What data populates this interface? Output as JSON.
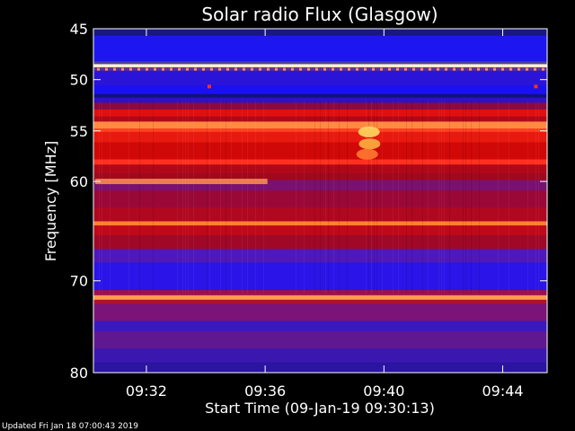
{
  "chart_data": {
    "type": "heatmap",
    "title": "Solar radio Flux (Glasgow)",
    "xlabel": "Start Time (09-Jan-19 09:30:13)",
    "ylabel": "Frequency [MHz]",
    "y_range": [
      45,
      80
    ],
    "y_inverted": true,
    "x_range": [
      "09:30:13",
      "09:45:30"
    ],
    "x_ticks": [
      "09:32",
      "09:36",
      "09:40",
      "09:44"
    ],
    "x_tick_minutes": [
      1.783,
      5.783,
      9.783,
      13.783
    ],
    "x_span_minutes": 15.28,
    "y_ticks": [
      45,
      50,
      55,
      60,
      70,
      80
    ],
    "y_tick_fracs": [
      0.0,
      0.148,
      0.297,
      0.444,
      0.733,
      1.0
    ],
    "colors": {
      "low": "#1a10e0",
      "mid": "#cc0000",
      "high": "#ff9a40",
      "peak": "#fff2c0"
    },
    "bands": [
      {
        "f0": 0.0,
        "f1": 0.02,
        "c": "#1a1880"
      },
      {
        "f0": 0.02,
        "f1": 0.095,
        "c": "#1e16f0"
      },
      {
        "f0": 0.095,
        "f1": 0.103,
        "c": "#5040a0"
      },
      {
        "f0": 0.103,
        "f1": 0.112,
        "c": "#fff4d0"
      },
      {
        "f0": 0.112,
        "f1": 0.122,
        "c": "#6030a0"
      },
      {
        "f0": 0.122,
        "f1": 0.165,
        "c": "#2a14d8"
      },
      {
        "f0": 0.165,
        "f1": 0.19,
        "c": "#1a10f0"
      },
      {
        "f0": 0.19,
        "f1": 0.2,
        "c": "#101080"
      },
      {
        "f0": 0.2,
        "f1": 0.215,
        "c": "#3010c0"
      },
      {
        "f0": 0.215,
        "f1": 0.235,
        "c": "#8a0a40"
      },
      {
        "f0": 0.235,
        "f1": 0.255,
        "c": "#e01010"
      },
      {
        "f0": 0.255,
        "f1": 0.27,
        "c": "#b00818"
      },
      {
        "f0": 0.27,
        "f1": 0.29,
        "c": "#ff8a40"
      },
      {
        "f0": 0.29,
        "f1": 0.3,
        "c": "#ff4020"
      },
      {
        "f0": 0.3,
        "f1": 0.33,
        "c": "#e81a10"
      },
      {
        "f0": 0.33,
        "f1": 0.38,
        "c": "#d00808"
      },
      {
        "f0": 0.38,
        "f1": 0.395,
        "c": "#ff3020"
      },
      {
        "f0": 0.395,
        "f1": 0.42,
        "c": "#b00818"
      },
      {
        "f0": 0.42,
        "f1": 0.44,
        "c": "#a00820"
      },
      {
        "f0": 0.44,
        "f1": 0.47,
        "c": "#7a1070"
      },
      {
        "f0": 0.47,
        "f1": 0.52,
        "c": "#9a0838"
      },
      {
        "f0": 0.52,
        "f1": 0.56,
        "c": "#b00820"
      },
      {
        "f0": 0.56,
        "f1": 0.572,
        "c": "#ff8030"
      },
      {
        "f0": 0.572,
        "f1": 0.6,
        "c": "#c00818"
      },
      {
        "f0": 0.6,
        "f1": 0.64,
        "c": "#a00828"
      },
      {
        "f0": 0.64,
        "f1": 0.68,
        "c": "#5018b8"
      },
      {
        "f0": 0.68,
        "f1": 0.76,
        "c": "#2a14e8"
      },
      {
        "f0": 0.76,
        "f1": 0.775,
        "c": "#9a1050"
      },
      {
        "f0": 0.775,
        "f1": 0.788,
        "c": "#ff9a50"
      },
      {
        "f0": 0.788,
        "f1": 0.8,
        "c": "#b01030"
      },
      {
        "f0": 0.8,
        "f1": 0.85,
        "c": "#7a1478"
      },
      {
        "f0": 0.85,
        "f1": 0.88,
        "c": "#3a18c0"
      },
      {
        "f0": 0.88,
        "f1": 0.93,
        "c": "#601890"
      },
      {
        "f0": 0.93,
        "f1": 0.97,
        "c": "#3a18b0"
      },
      {
        "f0": 0.97,
        "f1": 1.0,
        "c": "#2a14a0"
      }
    ],
    "features": [
      {
        "name": "burst",
        "t": 9.28,
        "f": 0.3,
        "c": "#ffd860"
      },
      {
        "name": "burst",
        "t": 9.3,
        "f": 0.335,
        "c": "#ffb040"
      },
      {
        "name": "burst",
        "t": 9.22,
        "f": 0.365,
        "c": "#ff7a30"
      },
      {
        "name": "interference",
        "t": 0.5,
        "f": 0.444,
        "c": "#ff9050"
      },
      {
        "name": "spot",
        "t": 3.9,
        "f": 0.168,
        "c": "#ff3010"
      },
      {
        "name": "spot",
        "t": 14.9,
        "f": 0.168,
        "c": "#ff3010"
      }
    ]
  },
  "footer": {
    "updated": "Updated Fri Jan 18 07:00:43 2019"
  }
}
